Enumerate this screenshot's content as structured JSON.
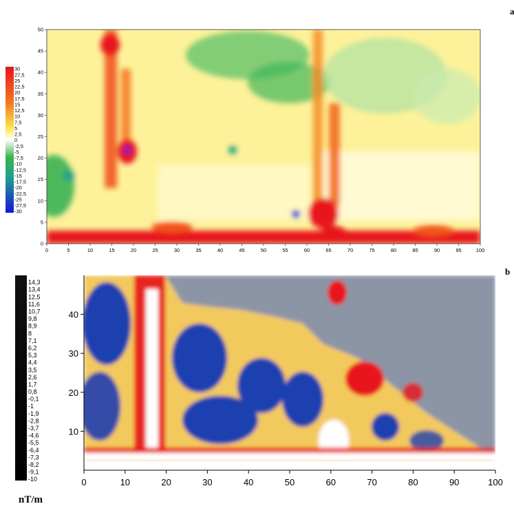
{
  "panels": {
    "a": {
      "label": "a",
      "colorbar_labels": [
        "30",
        "27,5",
        "25",
        "22,5",
        "20",
        "17,5",
        "15",
        "12,5",
        "10",
        "7,5",
        "5",
        "2,5",
        "0",
        "-2,5",
        "-5",
        "-7,5",
        "-10",
        "-12,5",
        "-15",
        "-17,5",
        "-20",
        "-22,5",
        "-25",
        "-27,5",
        "-30"
      ]
    },
    "b": {
      "label": "b",
      "unit": "nT/m",
      "colorbar_labels": [
        "14,3",
        "13,4",
        "12,5",
        "11,6",
        "10,7",
        "9,8",
        "8,9",
        "8",
        "7,1",
        "6,2",
        "5,3",
        "4,4",
        "3,5",
        "2,6",
        "1,7",
        "0,8",
        "-0,1",
        "-1",
        "-1,9",
        "-2,8",
        "-3,7",
        "-4,6",
        "-5,5",
        "-6,4",
        "-7,3",
        "-8,2",
        "-9,1",
        "-10"
      ]
    }
  },
  "chart_data": [
    {
      "type": "heatmap",
      "panel": "a",
      "xlim": [
        0,
        100
      ],
      "ylim": [
        0,
        50
      ],
      "x_ticks": [
        0,
        5,
        10,
        15,
        20,
        25,
        30,
        35,
        40,
        45,
        50,
        55,
        60,
        65,
        70,
        75,
        80,
        85,
        90,
        95,
        100
      ],
      "y_ticks": [
        0,
        5,
        10,
        15,
        20,
        25,
        30,
        35,
        40,
        45,
        50
      ],
      "colorscale_range": [
        -30,
        30
      ],
      "colors": {
        "high": "#e8141b",
        "mid_high": "#f7e23c",
        "zero": "#ffffff",
        "mid_low": "#29b34a",
        "low": "#1a1fd6"
      }
    },
    {
      "type": "heatmap",
      "panel": "b",
      "xlim": [
        0,
        100
      ],
      "ylim": [
        0,
        50
      ],
      "x_ticks": [
        0,
        10,
        20,
        30,
        40,
        50,
        60,
        70,
        80,
        90,
        100
      ],
      "y_ticks": [
        10,
        20,
        30,
        40
      ],
      "colorscale_range": [
        -10,
        14.3
      ],
      "colors": {
        "high": "#e8141b",
        "mid": "#f0c040",
        "low": "#1f3fb0",
        "nodata": "#8c95a6"
      }
    }
  ]
}
